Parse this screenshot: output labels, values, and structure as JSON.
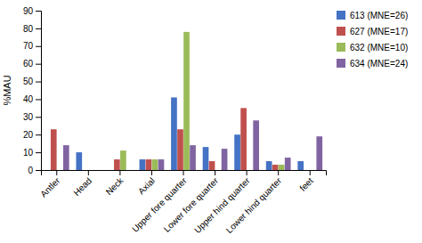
{
  "chart_data": {
    "type": "bar",
    "categories": [
      "Antler",
      "Head",
      "Neck",
      "Axial",
      "Upper fore quarter",
      "Lower fore quarter",
      "Upper hind quarter",
      "Lower hind quarter",
      "feet"
    ],
    "series": [
      {
        "name": "613 (MNE=26)",
        "color": "#4472C4",
        "values": [
          0,
          10,
          0,
          6,
          41,
          13,
          20,
          5,
          5
        ]
      },
      {
        "name": "627 (MNE=17)",
        "color": "#C0504D",
        "values": [
          23,
          0,
          6,
          6,
          23,
          5,
          35,
          3,
          0
        ]
      },
      {
        "name": "632 (MNE=10)",
        "color": "#9BBB59",
        "values": [
          0,
          0,
          11,
          6,
          78,
          0,
          0,
          3,
          0
        ]
      },
      {
        "name": "634 (MNE=24)",
        "color": "#8064A2",
        "values": [
          14,
          0,
          0,
          6,
          14,
          12,
          28,
          7,
          19
        ]
      }
    ],
    "ylabel": "%MAU",
    "ylim": [
      0,
      90
    ],
    "yticks": [
      0,
      10,
      20,
      30,
      40,
      50,
      60,
      70,
      80,
      90
    ],
    "grid": false,
    "legend": "right"
  }
}
